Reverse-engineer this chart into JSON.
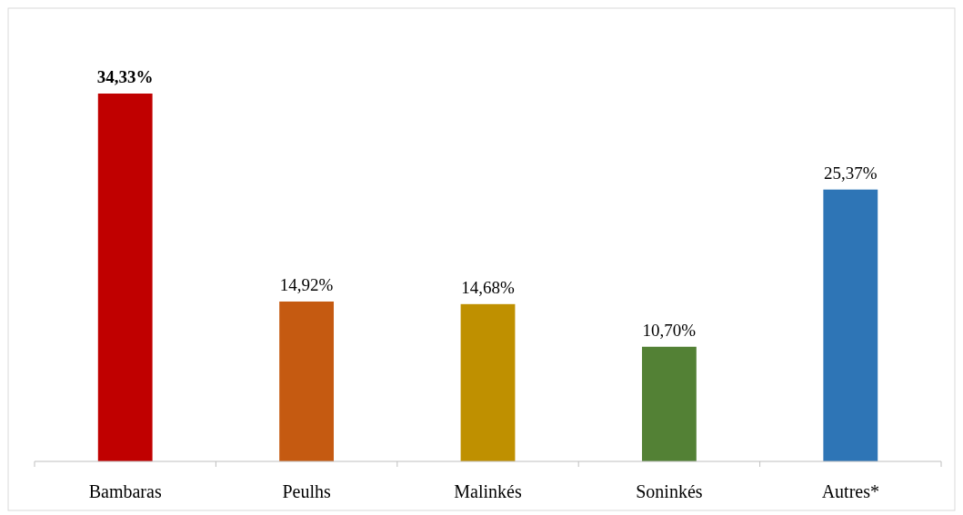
{
  "chart_data": {
    "type": "bar",
    "categories": [
      "Bambaras",
      "Peulhs",
      "Malinkés",
      "Soninkés",
      "Autres*"
    ],
    "values": [
      34.33,
      14.92,
      14.68,
      10.7,
      25.37
    ],
    "colors": [
      "#c00000",
      "#c55a11",
      "#bf9000",
      "#538135",
      "#2e75b6"
    ],
    "value_labels": [
      "34,33%",
      "14,92%",
      "14,68%",
      "10,70%",
      "25,37%"
    ]
  }
}
